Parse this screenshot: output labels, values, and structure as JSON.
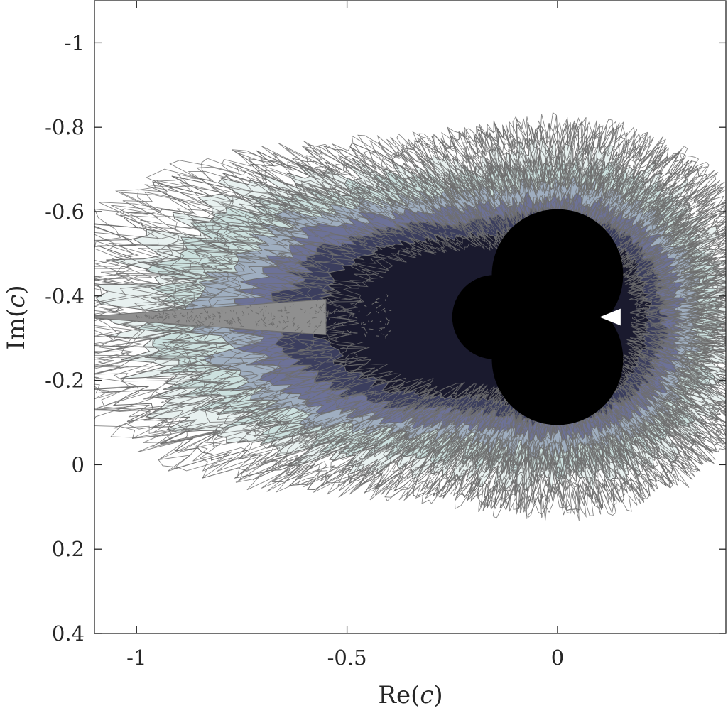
{
  "chart_data": {
    "type": "heatmap",
    "title": "",
    "xlabel": {
      "prefix": "Re(",
      "var": "c",
      "suffix": ")"
    },
    "ylabel": {
      "prefix": "Im(",
      "var": "c",
      "suffix": ")"
    },
    "xlim": [
      -1.1,
      0.4
    ],
    "ylim": [
      -1.1,
      0.4
    ],
    "y_axis_direction": "reversed",
    "grid": false,
    "x_ticks": [
      {
        "value": -1,
        "label": "-1"
      },
      {
        "value": -0.5,
        "label": "-0.5"
      },
      {
        "value": 0,
        "label": "0"
      }
    ],
    "y_ticks": [
      {
        "value": -1,
        "label": "-1"
      },
      {
        "value": -0.8,
        "label": "-0.8"
      },
      {
        "value": -0.6,
        "label": "-0.6"
      },
      {
        "value": -0.4,
        "label": "-0.4"
      },
      {
        "value": -0.2,
        "label": "-0.2"
      },
      {
        "value": 0,
        "label": "0"
      },
      {
        "value": 0.2,
        "label": "0.2"
      },
      {
        "value": 0.4,
        "label": "0.4"
      }
    ],
    "contour_line_color": "#6e6e6e",
    "colormap": [
      "#ffffff",
      "#c7dedc",
      "#6a6f96",
      "#1a1a2e",
      "#000000"
    ],
    "region": {
      "main_body_center": [
        -0.02,
        -0.35
      ],
      "main_body_radius": 0.2,
      "spike_from": -1.1,
      "spike_y": -0.35,
      "extent_x": [
        -1.1,
        0.27
      ],
      "extent_y": [
        -0.85,
        0.15
      ]
    }
  }
}
